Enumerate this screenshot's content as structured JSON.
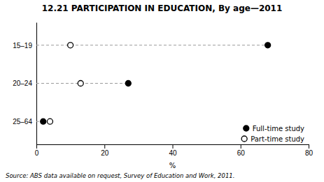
{
  "chart_data": {
    "type": "dot",
    "title": "12.21   PARTICIPATION IN EDUCATION, By age—2011",
    "orientation": "horizontal",
    "categories": [
      "15–19",
      "20–24",
      "25–64"
    ],
    "series": [
      {
        "name": "Full-time study",
        "color": "#000000",
        "marker": "circle",
        "values": [
          68,
          27,
          2
        ]
      },
      {
        "name": "Part-time study",
        "color": "#000000",
        "marker": "open-circle",
        "values": [
          10,
          13,
          4
        ]
      }
    ],
    "x_label": "%",
    "xlim": [
      0,
      80
    ],
    "xticks": [
      0,
      20,
      40,
      60,
      80
    ],
    "legend": "lower right",
    "grid": false,
    "source": "Source: ABS data available on request, Survey of Education and Work, 2011."
  }
}
